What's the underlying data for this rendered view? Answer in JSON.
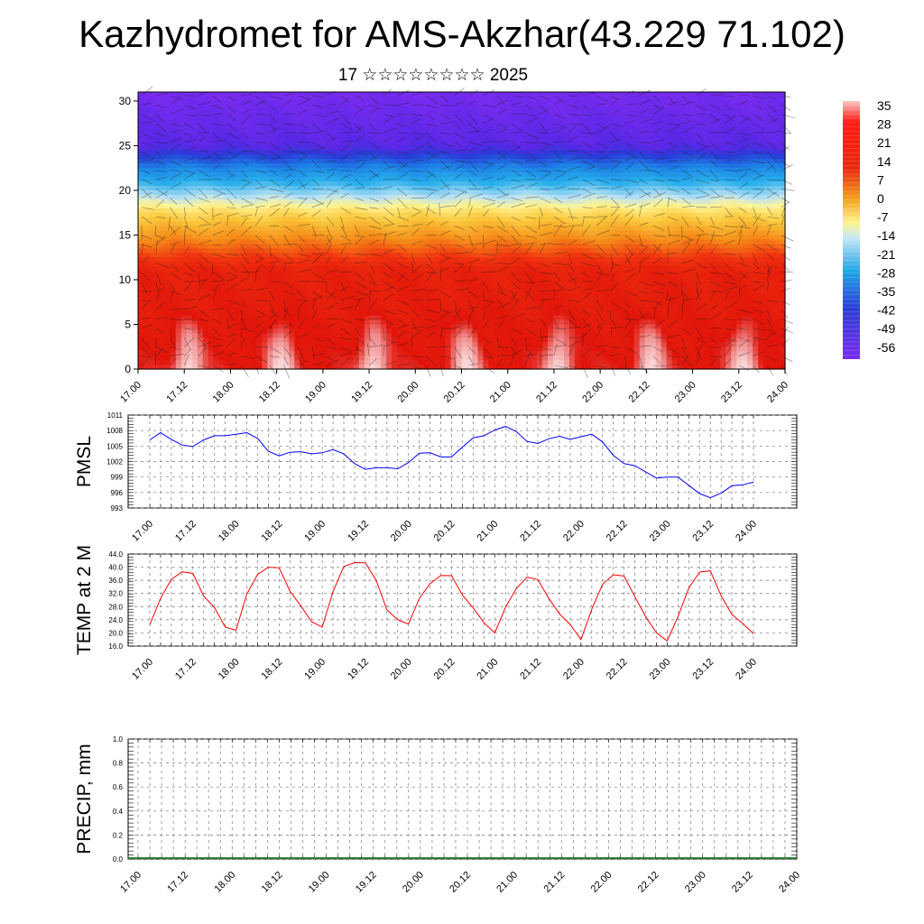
{
  "title": "Kazhydromet for AMS-Akzhar(43.229 71.102)",
  "subtitle": "17 ☆☆☆☆☆☆☆☆ 2025",
  "chart_data": [
    {
      "type": "heatmap",
      "ylim": [
        0,
        31
      ],
      "yticks": [
        0,
        5,
        10,
        15,
        20,
        25,
        30
      ],
      "xticks": [
        "17.00",
        "17.12",
        "18.00",
        "18.12",
        "19.00",
        "19.12",
        "20.00",
        "20.12",
        "21.00",
        "21.12",
        "22.00",
        "22.12",
        "23.00",
        "23.12",
        "24.00"
      ],
      "colorbar_labels": [
        "35",
        "28",
        "21",
        "14",
        "7",
        "0",
        "-7",
        "-14",
        "-21",
        "-28",
        "-35",
        "-42",
        "-49",
        "-56"
      ],
      "colorbar_range": [
        -60,
        38
      ]
    },
    {
      "type": "line",
      "ylabel": "PMSL",
      "ylim": [
        993,
        1011
      ],
      "yticks": [
        993,
        996,
        999,
        1002,
        1005,
        1008,
        1011
      ],
      "xticks": [
        "17.00",
        "17.12",
        "18.00",
        "18.12",
        "19.00",
        "19.12",
        "20.00",
        "20.12",
        "21.00",
        "21.12",
        "22.00",
        "22.12",
        "23.00",
        "23.12",
        "24.00"
      ],
      "color": "#0000ff",
      "values": [
        1006.2,
        1007.6,
        1006.3,
        1005.2,
        1004.9,
        1006.2,
        1007.0,
        1007.0,
        1007.3,
        1007.6,
        1006.5,
        1004.0,
        1003.1,
        1003.8,
        1003.9,
        1003.5,
        1003.7,
        1004.3,
        1003.5,
        1001.6,
        1000.5,
        1000.8,
        1000.8,
        1000.6,
        1001.8,
        1003.6,
        1003.7,
        1002.9,
        1002.9,
        1004.8,
        1006.6,
        1007.0,
        1008.1,
        1008.8,
        1007.8,
        1005.9,
        1005.5,
        1006.4,
        1006.9,
        1006.3,
        1006.8,
        1007.3,
        1005.8,
        1003.2,
        1001.6,
        1001.2,
        1000.0,
        998.8,
        999.0,
        999.0,
        997.4,
        995.8,
        995.0,
        995.9,
        997.3,
        997.5,
        998.0
      ]
    },
    {
      "type": "line",
      "ylabel": "TEMP at 2 M",
      "ylim": [
        16.0,
        44.0
      ],
      "yticks": [
        "16.0",
        "20.0",
        "24.0",
        "28.0",
        "32.0",
        "36.0",
        "40.0",
        "44.0"
      ],
      "xticks": [
        "17.00",
        "17.12",
        "18.00",
        "18.12",
        "19.00",
        "19.12",
        "20.00",
        "20.12",
        "21.00",
        "21.12",
        "22.00",
        "22.12",
        "23.00",
        "23.12",
        "24.00"
      ],
      "color": "#ff0000",
      "values": [
        22.5,
        30.5,
        36.3,
        38.6,
        38.1,
        31.2,
        27.7,
        21.8,
        20.8,
        31.8,
        37.8,
        40.0,
        39.8,
        32.7,
        28.3,
        23.4,
        21.8,
        32.6,
        40.2,
        41.4,
        41.3,
        36.0,
        27.0,
        24.0,
        22.7,
        30.5,
        35.0,
        37.5,
        37.4,
        31.5,
        27.6,
        23.1,
        20.0,
        27.8,
        33.5,
        37.0,
        36.2,
        30.6,
        25.8,
        22.6,
        18.0,
        27.2,
        34.8,
        37.7,
        37.3,
        31.0,
        25.0,
        20.0,
        17.6,
        25.0,
        33.6,
        38.5,
        38.9,
        31.3,
        25.6,
        22.9,
        19.8
      ]
    },
    {
      "type": "bar",
      "ylabel": "PRECIP, mm",
      "ylim": [
        0.0,
        1.0
      ],
      "yticks": [
        "0.0",
        "0.2",
        "0.4",
        "0.6",
        "0.8",
        "1.0"
      ],
      "xticks": [
        "17.00",
        "17.12",
        "18.00",
        "18.12",
        "19.00",
        "19.12",
        "20.00",
        "20.12",
        "21.00",
        "21.12",
        "22.00",
        "22.12",
        "23.00",
        "23.12",
        "24.00"
      ],
      "values": []
    }
  ]
}
